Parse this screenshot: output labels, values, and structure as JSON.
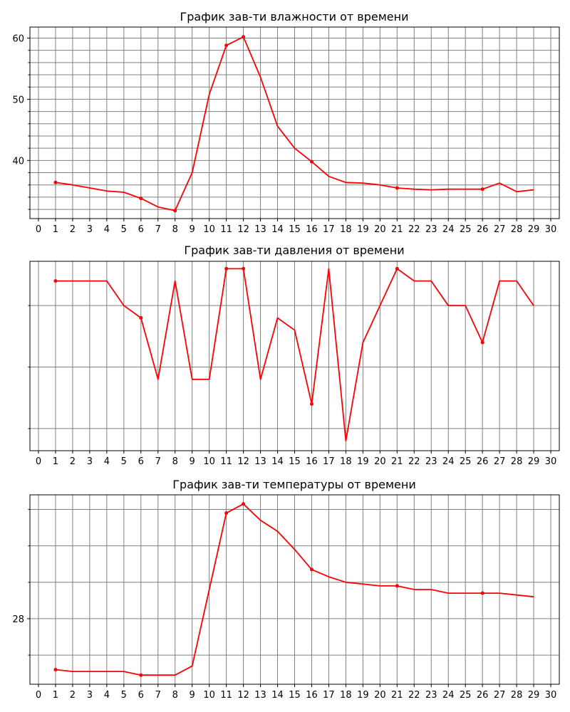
{
  "chart_data": [
    {
      "type": "line",
      "title": "График зав-ти влажности от времени",
      "xlim": [
        -0.5,
        30.5
      ],
      "ylim": [
        30.5,
        61.8
      ],
      "xticks": [
        0,
        1,
        2,
        3,
        4,
        5,
        6,
        7,
        8,
        9,
        10,
        11,
        12,
        13,
        14,
        15,
        16,
        17,
        18,
        19,
        20,
        21,
        22,
        23,
        24,
        25,
        26,
        27,
        28,
        29,
        30
      ],
      "yticks_labeled": [
        40,
        50,
        60
      ],
      "ygrid": [
        32,
        34,
        36,
        38,
        40,
        42,
        44,
        46,
        48,
        50,
        52,
        54,
        56,
        58,
        60
      ],
      "grid": true,
      "color": "#ff0000",
      "x": [
        1,
        2,
        3,
        4,
        5,
        6,
        7,
        8,
        9,
        10,
        11,
        12,
        13,
        14,
        15,
        16,
        17,
        18,
        19,
        20,
        21,
        22,
        23,
        24,
        25,
        26,
        27,
        28,
        29
      ],
      "values": [
        36.4,
        36.0,
        35.5,
        35.0,
        34.8,
        33.8,
        32.4,
        31.8,
        38.0,
        50.8,
        58.8,
        60.2,
        53.6,
        45.6,
        42.0,
        39.8,
        37.4,
        36.4,
        36.3,
        36.0,
        35.5,
        35.3,
        35.2,
        35.3,
        35.3,
        35.3,
        36.3,
        34.9,
        35.2
      ],
      "markers": [
        1,
        6,
        8,
        11,
        12,
        16,
        21,
        26
      ]
    },
    {
      "type": "line",
      "title": "График зав-ти давления от времени",
      "xlim": [
        -0.5,
        30.5
      ],
      "ylim": [
        98.2,
        113.6
      ],
      "xticks": [
        0,
        1,
        2,
        3,
        4,
        5,
        6,
        7,
        8,
        9,
        10,
        11,
        12,
        13,
        14,
        15,
        16,
        17,
        18,
        19,
        20,
        21,
        22,
        23,
        24,
        25,
        26,
        27,
        28,
        29,
        30
      ],
      "yticks_labeled": [],
      "ygrid": [
        100,
        105,
        110
      ],
      "grid": true,
      "color": "#ff0000",
      "x": [
        1,
        2,
        3,
        4,
        5,
        6,
        7,
        8,
        9,
        10,
        11,
        12,
        13,
        14,
        15,
        16,
        17,
        18,
        19,
        20,
        21,
        22,
        23,
        24,
        25,
        26,
        27,
        28,
        29
      ],
      "values": [
        112,
        112,
        112,
        112,
        110,
        109,
        104,
        112,
        104,
        104,
        113,
        113,
        104,
        109,
        108,
        102,
        113,
        99,
        107,
        110,
        113,
        112,
        112,
        110,
        110,
        107,
        112,
        112,
        110
      ],
      "markers": [
        1,
        6,
        11,
        12,
        16,
        21,
        26
      ]
    },
    {
      "type": "line",
      "title": "График зав-ти температуры от времени",
      "xlim": [
        -0.5,
        30.5
      ],
      "ylim": [
        26.2,
        31.4
      ],
      "xticks": [
        0,
        1,
        2,
        3,
        4,
        5,
        6,
        7,
        8,
        9,
        10,
        11,
        12,
        13,
        14,
        15,
        16,
        17,
        18,
        19,
        20,
        21,
        22,
        23,
        24,
        25,
        26,
        27,
        28,
        29,
        30
      ],
      "yticks_labeled": [
        28
      ],
      "ygrid": [
        27,
        28,
        29,
        30,
        31
      ],
      "grid": true,
      "color": "#ff0000",
      "x": [
        1,
        2,
        3,
        4,
        5,
        6,
        7,
        8,
        9,
        10,
        11,
        12,
        13,
        14,
        15,
        16,
        17,
        18,
        19,
        20,
        21,
        22,
        23,
        24,
        25,
        26,
        27,
        28,
        29
      ],
      "values": [
        26.6,
        26.55,
        26.55,
        26.55,
        26.55,
        26.45,
        26.45,
        26.45,
        26.7,
        28.8,
        30.9,
        31.15,
        30.7,
        30.4,
        29.9,
        29.35,
        29.15,
        29.0,
        28.95,
        28.9,
        28.9,
        28.8,
        28.8,
        28.7,
        28.7,
        28.7,
        28.7,
        28.65,
        28.6
      ],
      "markers": [
        1,
        6,
        11,
        12,
        16,
        21,
        26
      ]
    }
  ]
}
